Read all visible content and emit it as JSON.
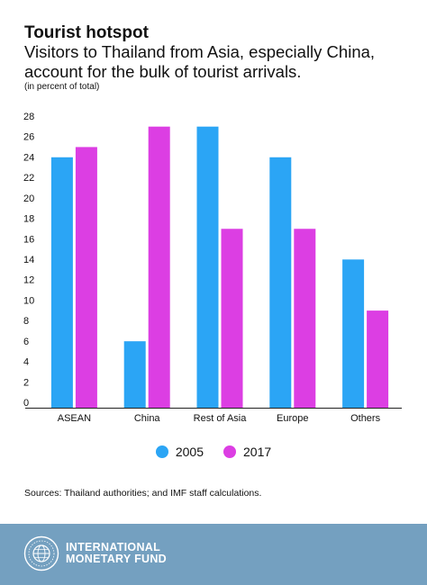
{
  "header": {
    "title": "Tourist hotspot",
    "subtitle": "Visitors to Thailand from Asia, especially China, account for the bulk of tourist arrivals.",
    "unit_note": "(in percent of total)"
  },
  "chart_data": {
    "type": "bar",
    "categories": [
      "ASEAN",
      "China",
      "Rest of Asia",
      "Europe",
      "Others"
    ],
    "series": [
      {
        "name": "2005",
        "values": [
          24.5,
          6.5,
          27.5,
          24.5,
          14.5
        ],
        "color": "#2ba5f5"
      },
      {
        "name": "2017",
        "values": [
          25.5,
          27.5,
          17.5,
          17.5,
          9.5
        ],
        "color": "#dc3ee3"
      }
    ],
    "yticks": [
      0,
      2,
      4,
      6,
      8,
      10,
      12,
      14,
      16,
      18,
      20,
      22,
      24,
      26,
      28
    ],
    "ylim": [
      0,
      28
    ],
    "grid": false,
    "legend_position": "bottom"
  },
  "legend": {
    "series_a": "2005",
    "series_b": "2017"
  },
  "source": "Sources: Thailand authorities; and IMF staff calculations.",
  "footer": {
    "org_line1": "INTERNATIONAL",
    "org_line2": "MONETARY FUND",
    "background_color": "#74a0c0"
  }
}
